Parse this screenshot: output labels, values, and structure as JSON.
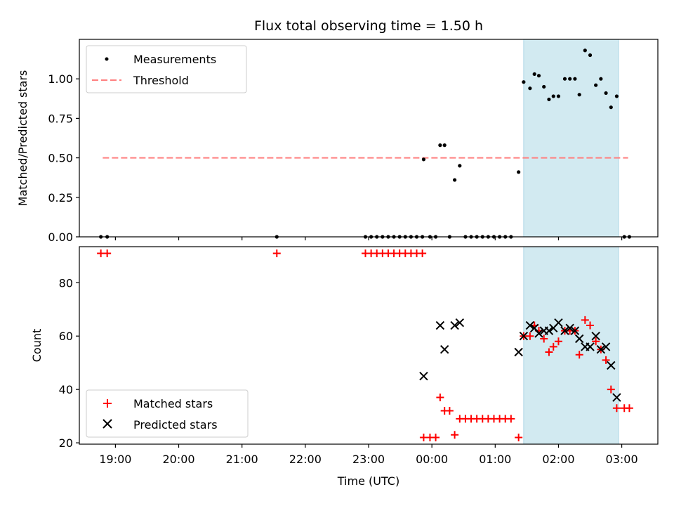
{
  "chart_data": {
    "type": "scatter",
    "title": "Flux total observing time = 1.50 h",
    "xlabel": "Time (UTC)",
    "x_ticks": [
      "19:00",
      "20:00",
      "21:00",
      "22:00",
      "23:00",
      "00:00",
      "01:00",
      "02:00",
      "03:00"
    ],
    "x_range_hours": [
      18.43,
      27.57
    ],
    "observing_window_hours": [
      25.45,
      26.95
    ],
    "colors": {
      "window": "#add8e6",
      "measurements": "#000000",
      "threshold": "#ff8080",
      "matched": "#ff0000",
      "predicted": "#000000"
    },
    "top": {
      "ylabel": "Matched/Predicted stars",
      "ylim": [
        0,
        1.25
      ],
      "y_ticks": [
        "0.00",
        "0.25",
        "0.50",
        "0.75",
        "1.00"
      ],
      "legend": [
        "Measurements",
        "Threshold"
      ],
      "threshold": {
        "value": 0.5,
        "x_range_hours": [
          18.8,
          27.1
        ]
      },
      "measurements": [
        [
          18.77,
          0
        ],
        [
          18.87,
          0
        ],
        [
          21.55,
          0
        ],
        [
          22.95,
          0
        ],
        [
          23.04,
          0
        ],
        [
          23.13,
          0
        ],
        [
          23.22,
          0
        ],
        [
          23.31,
          0
        ],
        [
          23.4,
          0
        ],
        [
          23.49,
          0
        ],
        [
          23.58,
          0
        ],
        [
          23.67,
          0
        ],
        [
          23.76,
          0
        ],
        [
          23.85,
          0
        ],
        [
          23.87,
          0.49
        ],
        [
          23.97,
          0
        ],
        [
          24.06,
          0
        ],
        [
          24.13,
          0.58
        ],
        [
          24.2,
          0.58
        ],
        [
          24.28,
          0
        ],
        [
          24.36,
          0.36
        ],
        [
          24.44,
          0.45
        ],
        [
          24.53,
          0
        ],
        [
          24.62,
          0
        ],
        [
          24.71,
          0
        ],
        [
          24.8,
          0
        ],
        [
          24.89,
          0
        ],
        [
          24.98,
          0
        ],
        [
          25.07,
          0
        ],
        [
          25.16,
          0
        ],
        [
          25.25,
          0
        ],
        [
          25.37,
          0.41
        ],
        [
          25.45,
          0.98
        ],
        [
          25.55,
          0.94
        ],
        [
          25.62,
          1.03
        ],
        [
          25.69,
          1.02
        ],
        [
          25.77,
          0.95
        ],
        [
          25.85,
          0.87
        ],
        [
          25.92,
          0.89
        ],
        [
          26.0,
          0.89
        ],
        [
          26.1,
          1.0
        ],
        [
          26.18,
          1.0
        ],
        [
          26.26,
          1.0
        ],
        [
          26.33,
          0.9
        ],
        [
          26.42,
          1.18
        ],
        [
          26.5,
          1.15
        ],
        [
          26.59,
          0.96
        ],
        [
          26.67,
          1.0
        ],
        [
          26.75,
          0.91
        ],
        [
          26.83,
          0.82
        ],
        [
          26.92,
          0.89
        ],
        [
          27.04,
          0
        ],
        [
          27.12,
          0
        ]
      ]
    },
    "bottom": {
      "ylabel": "Count",
      "ylim": [
        19.5,
        93.5
      ],
      "y_ticks": [
        "20",
        "40",
        "60",
        "80"
      ],
      "legend": [
        "Matched stars",
        "Predicted stars"
      ],
      "matched": [
        [
          18.77,
          91
        ],
        [
          18.87,
          91
        ],
        [
          21.55,
          91
        ],
        [
          22.95,
          91
        ],
        [
          23.04,
          91
        ],
        [
          23.13,
          91
        ],
        [
          23.22,
          91
        ],
        [
          23.31,
          91
        ],
        [
          23.4,
          91
        ],
        [
          23.49,
          91
        ],
        [
          23.58,
          91
        ],
        [
          23.67,
          91
        ],
        [
          23.76,
          91
        ],
        [
          23.85,
          91
        ],
        [
          23.87,
          22
        ],
        [
          23.97,
          22
        ],
        [
          24.06,
          22
        ],
        [
          24.13,
          37
        ],
        [
          24.2,
          32
        ],
        [
          24.28,
          32
        ],
        [
          24.36,
          23
        ],
        [
          24.44,
          29
        ],
        [
          24.53,
          29
        ],
        [
          24.62,
          29
        ],
        [
          24.71,
          29
        ],
        [
          24.8,
          29
        ],
        [
          24.89,
          29
        ],
        [
          24.98,
          29
        ],
        [
          25.07,
          29
        ],
        [
          25.16,
          29
        ],
        [
          25.25,
          29
        ],
        [
          25.37,
          22
        ],
        [
          25.45,
          60
        ],
        [
          25.55,
          60
        ],
        [
          25.62,
          64
        ],
        [
          25.69,
          62
        ],
        [
          25.77,
          59
        ],
        [
          25.85,
          54
        ],
        [
          25.92,
          56
        ],
        [
          26.0,
          58
        ],
        [
          26.1,
          62
        ],
        [
          26.18,
          62
        ],
        [
          26.26,
          62
        ],
        [
          26.33,
          53
        ],
        [
          26.42,
          66
        ],
        [
          26.5,
          64
        ],
        [
          26.59,
          58
        ],
        [
          26.67,
          55
        ],
        [
          26.75,
          51
        ],
        [
          26.83,
          40
        ],
        [
          26.92,
          33
        ],
        [
          27.04,
          33
        ],
        [
          27.12,
          33
        ]
      ],
      "predicted": [
        [
          23.87,
          45
        ],
        [
          24.13,
          64
        ],
        [
          24.2,
          55
        ],
        [
          24.36,
          64
        ],
        [
          24.44,
          65
        ],
        [
          25.37,
          54
        ],
        [
          25.45,
          60
        ],
        [
          25.55,
          64
        ],
        [
          25.62,
          63
        ],
        [
          25.69,
          61
        ],
        [
          25.77,
          62
        ],
        [
          25.85,
          62
        ],
        [
          25.92,
          63
        ],
        [
          26.0,
          65
        ],
        [
          26.1,
          62
        ],
        [
          26.18,
          63
        ],
        [
          26.26,
          62
        ],
        [
          26.33,
          59
        ],
        [
          26.42,
          56
        ],
        [
          26.5,
          56
        ],
        [
          26.59,
          60
        ],
        [
          26.67,
          55
        ],
        [
          26.75,
          56
        ],
        [
          26.83,
          49
        ],
        [
          26.92,
          37
        ]
      ]
    }
  }
}
